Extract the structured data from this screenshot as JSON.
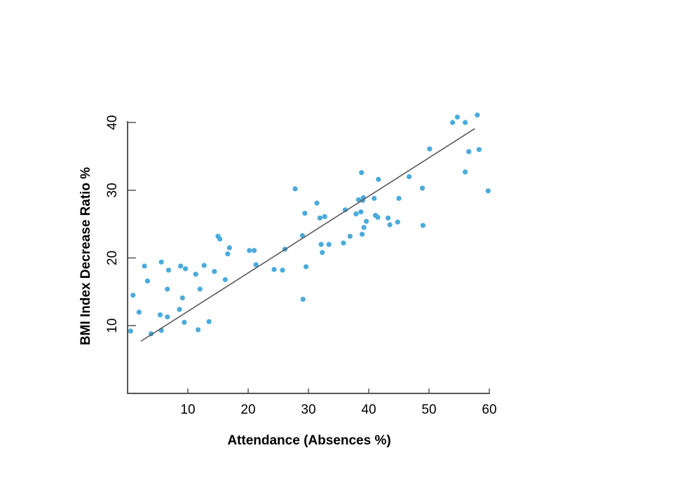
{
  "chart_data": {
    "type": "scatter",
    "title": "",
    "xlabel": "Attendance (Absences %)",
    "ylabel": "BMI Index Decrease Ratio %",
    "xlim": [
      0,
      60
    ],
    "ylim": [
      0,
      40
    ],
    "xticks": [
      10,
      20,
      30,
      40,
      50,
      60
    ],
    "yticks": [
      10,
      20,
      30,
      40
    ],
    "grid": false,
    "legend": "none",
    "colors": {
      "points": "#4aabdb",
      "trendline": "#595959",
      "axis": "#555555"
    },
    "points": [
      {
        "x": 0.5,
        "y": 9.2
      },
      {
        "x": 0.9,
        "y": 14.5
      },
      {
        "x": 1.9,
        "y": 12.0
      },
      {
        "x": 2.8,
        "y": 18.8
      },
      {
        "x": 3.3,
        "y": 16.6
      },
      {
        "x": 3.9,
        "y": 8.8
      },
      {
        "x": 5.4,
        "y": 11.6
      },
      {
        "x": 5.6,
        "y": 9.3
      },
      {
        "x": 5.6,
        "y": 19.4
      },
      {
        "x": 6.6,
        "y": 11.3
      },
      {
        "x": 6.6,
        "y": 15.4
      },
      {
        "x": 6.8,
        "y": 18.2
      },
      {
        "x": 8.6,
        "y": 12.4
      },
      {
        "x": 8.8,
        "y": 18.8
      },
      {
        "x": 9.1,
        "y": 14.1
      },
      {
        "x": 9.4,
        "y": 10.5
      },
      {
        "x": 9.6,
        "y": 18.4
      },
      {
        "x": 11.3,
        "y": 17.6
      },
      {
        "x": 11.7,
        "y": 9.4
      },
      {
        "x": 12.0,
        "y": 15.4
      },
      {
        "x": 12.7,
        "y": 18.9
      },
      {
        "x": 13.5,
        "y": 10.6
      },
      {
        "x": 14.4,
        "y": 18.0
      },
      {
        "x": 15.0,
        "y": 23.2
      },
      {
        "x": 15.3,
        "y": 22.8
      },
      {
        "x": 16.2,
        "y": 16.8
      },
      {
        "x": 16.6,
        "y": 20.6
      },
      {
        "x": 16.9,
        "y": 21.5
      },
      {
        "x": 20.2,
        "y": 21.1
      },
      {
        "x": 21.0,
        "y": 21.1
      },
      {
        "x": 21.3,
        "y": 19.0
      },
      {
        "x": 24.3,
        "y": 18.3
      },
      {
        "x": 25.7,
        "y": 18.2
      },
      {
        "x": 26.1,
        "y": 21.3
      },
      {
        "x": 27.8,
        "y": 30.2
      },
      {
        "x": 29.0,
        "y": 23.3
      },
      {
        "x": 29.1,
        "y": 13.9
      },
      {
        "x": 29.4,
        "y": 26.6
      },
      {
        "x": 29.6,
        "y": 18.7
      },
      {
        "x": 31.4,
        "y": 28.1
      },
      {
        "x": 31.9,
        "y": 25.9
      },
      {
        "x": 32.1,
        "y": 22.0
      },
      {
        "x": 32.3,
        "y": 20.8
      },
      {
        "x": 32.7,
        "y": 26.1
      },
      {
        "x": 33.4,
        "y": 22.0
      },
      {
        "x": 35.8,
        "y": 22.2
      },
      {
        "x": 36.1,
        "y": 27.1
      },
      {
        "x": 36.9,
        "y": 23.2
      },
      {
        "x": 37.9,
        "y": 26.5
      },
      {
        "x": 38.3,
        "y": 28.6
      },
      {
        "x": 38.7,
        "y": 26.8
      },
      {
        "x": 38.8,
        "y": 32.6
      },
      {
        "x": 38.9,
        "y": 23.5
      },
      {
        "x": 39.0,
        "y": 28.5
      },
      {
        "x": 39.1,
        "y": 28.9
      },
      {
        "x": 39.2,
        "y": 24.5
      },
      {
        "x": 39.6,
        "y": 25.4
      },
      {
        "x": 40.9,
        "y": 28.8
      },
      {
        "x": 41.1,
        "y": 26.3
      },
      {
        "x": 41.5,
        "y": 26.0
      },
      {
        "x": 41.6,
        "y": 31.6
      },
      {
        "x": 43.2,
        "y": 25.9
      },
      {
        "x": 43.5,
        "y": 24.9
      },
      {
        "x": 44.8,
        "y": 25.3
      },
      {
        "x": 45.0,
        "y": 28.8
      },
      {
        "x": 46.7,
        "y": 32.0
      },
      {
        "x": 48.9,
        "y": 30.3
      },
      {
        "x": 49.0,
        "y": 24.8
      },
      {
        "x": 50.1,
        "y": 36.1
      },
      {
        "x": 53.9,
        "y": 40.0
      },
      {
        "x": 54.7,
        "y": 40.8
      },
      {
        "x": 56.0,
        "y": 40.0
      },
      {
        "x": 56.0,
        "y": 32.7
      },
      {
        "x": 56.6,
        "y": 35.7
      },
      {
        "x": 58.0,
        "y": 41.1
      },
      {
        "x": 58.3,
        "y": 36.0
      },
      {
        "x": 59.8,
        "y": 29.9
      }
    ],
    "trendline": {
      "x": [
        2.2,
        57.6
      ],
      "y": [
        7.7,
        39.1
      ]
    }
  }
}
